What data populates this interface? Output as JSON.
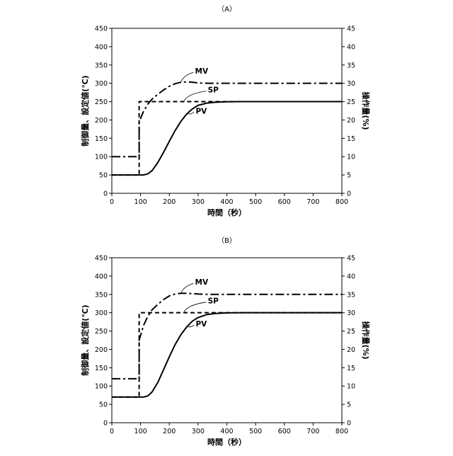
{
  "chart_data": [
    {
      "type": "line",
      "title": "（A）",
      "xlabel": "時間（秒）",
      "ylabel": "制御量、設定値(℃)",
      "ylabel_right": "操作量(%)",
      "xlim": [
        0,
        800
      ],
      "ylim": [
        0,
        450
      ],
      "ylim_right": [
        0,
        45
      ],
      "x_ticks": [
        0,
        100,
        200,
        300,
        400,
        500,
        600,
        700,
        800
      ],
      "y_ticks": [
        0,
        50,
        100,
        150,
        200,
        250,
        300,
        350,
        400,
        450
      ],
      "y_ticks_right": [
        0,
        5,
        10,
        15,
        20,
        25,
        30,
        35,
        40,
        45
      ],
      "grid": false,
      "legend": "none",
      "series": [
        {
          "name": "SP",
          "axis": "left",
          "style": "dashed",
          "points": [
            [
              0,
              50
            ],
            [
              95,
              50
            ],
            [
              95,
              250
            ],
            [
              800,
              250
            ]
          ]
        },
        {
          "name": "MV",
          "axis": "right",
          "style": "dashdot",
          "points": [
            [
              0,
              10
            ],
            [
              95,
              10
            ],
            [
              95,
              19.5
            ],
            [
              110,
              22.3
            ],
            [
              125,
              24.3
            ],
            [
              140,
              25.7
            ],
            [
              160,
              27
            ],
            [
              180,
              28.2
            ],
            [
              200,
              29.2
            ],
            [
              220,
              29.9
            ],
            [
              240,
              30.3
            ],
            [
              260,
              30.4
            ],
            [
              280,
              30.3
            ],
            [
              300,
              30.1
            ],
            [
              340,
              30
            ],
            [
              400,
              30
            ],
            [
              800,
              30
            ]
          ]
        },
        {
          "name": "PV",
          "axis": "left",
          "style": "solid",
          "points": [
            [
              0,
              50
            ],
            [
              110,
              50
            ],
            [
              125,
              53
            ],
            [
              140,
              62
            ],
            [
              160,
              84
            ],
            [
              180,
              112
            ],
            [
              200,
              142
            ],
            [
              220,
              171
            ],
            [
              240,
              196
            ],
            [
              260,
              216
            ],
            [
              280,
              230
            ],
            [
              300,
              240
            ],
            [
              330,
              246
            ],
            [
              360,
              248.5
            ],
            [
              400,
              249.5
            ],
            [
              450,
              250
            ],
            [
              800,
              250
            ]
          ]
        }
      ],
      "annotations": [
        "MV",
        "SP",
        "PV"
      ]
    },
    {
      "type": "line",
      "title": "（B）",
      "xlabel": "時間（秒）",
      "ylabel": "制御量、設定値(℃)",
      "ylabel_right": "操作量(%)",
      "xlim": [
        0,
        800
      ],
      "ylim": [
        0,
        450
      ],
      "ylim_right": [
        0,
        45
      ],
      "x_ticks": [
        0,
        100,
        200,
        300,
        400,
        500,
        600,
        700,
        800
      ],
      "y_ticks": [
        0,
        50,
        100,
        150,
        200,
        250,
        300,
        350,
        400,
        450
      ],
      "y_ticks_right": [
        0,
        5,
        10,
        15,
        20,
        25,
        30,
        35,
        40,
        45
      ],
      "grid": false,
      "legend": "none",
      "series": [
        {
          "name": "SP",
          "axis": "left",
          "style": "dashed",
          "points": [
            [
              0,
              70
            ],
            [
              95,
              70
            ],
            [
              95,
              300
            ],
            [
              800,
              300
            ]
          ]
        },
        {
          "name": "MV",
          "axis": "right",
          "style": "dashdot",
          "points": [
            [
              0,
              12
            ],
            [
              95,
              12
            ],
            [
              95,
              22.5
            ],
            [
              110,
              26.5
            ],
            [
              125,
              29
            ],
            [
              140,
              30.8
            ],
            [
              160,
              32.3
            ],
            [
              180,
              33.6
            ],
            [
              200,
              34.6
            ],
            [
              220,
              35.1
            ],
            [
              240,
              35.3
            ],
            [
              260,
              35.3
            ],
            [
              280,
              35.2
            ],
            [
              300,
              35.1
            ],
            [
              340,
              35
            ],
            [
              400,
              35
            ],
            [
              800,
              35
            ]
          ]
        },
        {
          "name": "PV",
          "axis": "left",
          "style": "solid",
          "points": [
            [
              0,
              70
            ],
            [
              110,
              70
            ],
            [
              125,
              73
            ],
            [
              140,
              84
            ],
            [
              160,
              110
            ],
            [
              180,
              145
            ],
            [
              200,
              180
            ],
            [
              220,
              213
            ],
            [
              240,
              240
            ],
            [
              260,
              261
            ],
            [
              280,
              277
            ],
            [
              300,
              287
            ],
            [
              330,
              295
            ],
            [
              360,
              298
            ],
            [
              400,
              299.5
            ],
            [
              450,
              300
            ],
            [
              800,
              300
            ]
          ]
        }
      ],
      "annotations": [
        "MV",
        "SP",
        "PV"
      ]
    }
  ]
}
